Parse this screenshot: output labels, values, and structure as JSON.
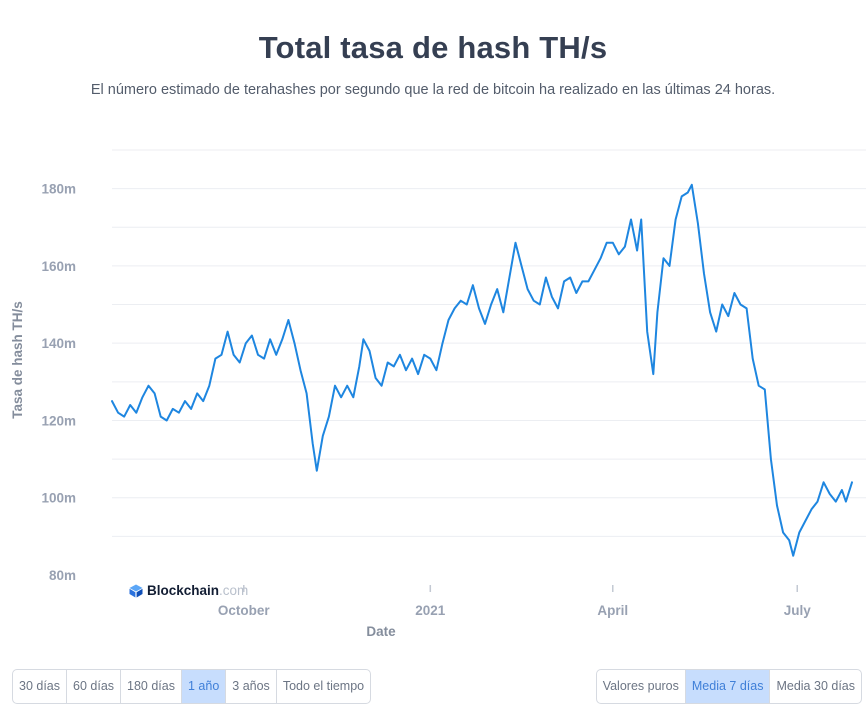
{
  "header": {
    "title": "Total tasa de hash TH/s",
    "subtitle": "El número estimado de terahashes por segundo que la red de bitcoin ha realizado en las últimas 24 horas."
  },
  "watermark": {
    "brand": "Blockchain",
    "suffix": ".com",
    "icon": "blockchain-logo-icon"
  },
  "range_buttons": [
    {
      "label": "30 días",
      "active": false
    },
    {
      "label": "60 días",
      "active": false
    },
    {
      "label": "180 días",
      "active": false
    },
    {
      "label": "1 año",
      "active": true
    },
    {
      "label": "3 años",
      "active": false
    },
    {
      "label": "Todo el tiempo",
      "active": false
    }
  ],
  "avg_buttons": [
    {
      "label": "Valores puros",
      "active": false
    },
    {
      "label": "Media 7 días",
      "active": true
    },
    {
      "label": "Media 30 días",
      "active": false
    }
  ],
  "colors": {
    "line": "#1e86e0",
    "grid": "#eceef2",
    "active_button_bg": "#c7ddfd"
  },
  "chart_data": {
    "type": "line",
    "title": "Total tasa de hash TH/s",
    "xlabel": "Date",
    "ylabel": "Tasa de hash TH/s",
    "x_range": [
      "2020-07-28",
      "2021-07-28"
    ],
    "ylim": [
      80,
      190
    ],
    "y_ticks": [
      80,
      100,
      120,
      140,
      160,
      180
    ],
    "y_tick_labels": [
      "80m",
      "100m",
      "120m",
      "140m",
      "160m",
      "180m"
    ],
    "x_ticks": [
      {
        "date": "2020-10-01",
        "label": "October"
      },
      {
        "date": "2021-01-01",
        "label": "2021"
      },
      {
        "date": "2021-04-01",
        "label": "April"
      },
      {
        "date": "2021-07-01",
        "label": "July"
      }
    ],
    "grid": true,
    "legend": "none",
    "series": [
      {
        "points": [
          [
            "2020-07-28",
            125
          ],
          [
            "2020-07-31",
            122
          ],
          [
            "2020-08-03",
            121
          ],
          [
            "2020-08-06",
            124
          ],
          [
            "2020-08-09",
            122
          ],
          [
            "2020-08-12",
            126
          ],
          [
            "2020-08-15",
            129
          ],
          [
            "2020-08-18",
            127
          ],
          [
            "2020-08-21",
            121
          ],
          [
            "2020-08-24",
            120
          ],
          [
            "2020-08-27",
            123
          ],
          [
            "2020-08-30",
            122
          ],
          [
            "2020-09-02",
            125
          ],
          [
            "2020-09-05",
            123
          ],
          [
            "2020-09-08",
            127
          ],
          [
            "2020-09-11",
            125
          ],
          [
            "2020-09-14",
            129
          ],
          [
            "2020-09-17",
            136
          ],
          [
            "2020-09-20",
            137
          ],
          [
            "2020-09-23",
            143
          ],
          [
            "2020-09-26",
            137
          ],
          [
            "2020-09-29",
            135
          ],
          [
            "2020-10-02",
            140
          ],
          [
            "2020-10-05",
            142
          ],
          [
            "2020-10-08",
            137
          ],
          [
            "2020-10-11",
            136
          ],
          [
            "2020-10-14",
            141
          ],
          [
            "2020-10-17",
            137
          ],
          [
            "2020-10-20",
            141
          ],
          [
            "2020-10-23",
            146
          ],
          [
            "2020-10-26",
            140
          ],
          [
            "2020-10-29",
            133
          ],
          [
            "2020-11-01",
            127
          ],
          [
            "2020-11-04",
            114
          ],
          [
            "2020-11-06",
            107
          ],
          [
            "2020-11-09",
            116
          ],
          [
            "2020-11-12",
            121
          ],
          [
            "2020-11-15",
            129
          ],
          [
            "2020-11-18",
            126
          ],
          [
            "2020-11-21",
            129
          ],
          [
            "2020-11-24",
            126
          ],
          [
            "2020-11-27",
            134
          ],
          [
            "2020-11-29",
            141
          ],
          [
            "2020-12-02",
            138
          ],
          [
            "2020-12-05",
            131
          ],
          [
            "2020-12-08",
            129
          ],
          [
            "2020-12-11",
            135
          ],
          [
            "2020-12-14",
            134
          ],
          [
            "2020-12-17",
            137
          ],
          [
            "2020-12-20",
            133
          ],
          [
            "2020-12-23",
            136
          ],
          [
            "2020-12-26",
            132
          ],
          [
            "2020-12-29",
            137
          ],
          [
            "2021-01-01",
            136
          ],
          [
            "2021-01-04",
            133
          ],
          [
            "2021-01-07",
            140
          ],
          [
            "2021-01-10",
            146
          ],
          [
            "2021-01-13",
            149
          ],
          [
            "2021-01-16",
            151
          ],
          [
            "2021-01-19",
            150
          ],
          [
            "2021-01-22",
            155
          ],
          [
            "2021-01-25",
            149
          ],
          [
            "2021-01-28",
            145
          ],
          [
            "2021-01-31",
            150
          ],
          [
            "2021-02-03",
            154
          ],
          [
            "2021-02-06",
            148
          ],
          [
            "2021-02-09",
            157
          ],
          [
            "2021-02-12",
            166
          ],
          [
            "2021-02-15",
            160
          ],
          [
            "2021-02-18",
            154
          ],
          [
            "2021-02-21",
            151
          ],
          [
            "2021-02-24",
            150
          ],
          [
            "2021-02-27",
            157
          ],
          [
            "2021-03-02",
            152
          ],
          [
            "2021-03-05",
            149
          ],
          [
            "2021-03-08",
            156
          ],
          [
            "2021-03-11",
            157
          ],
          [
            "2021-03-14",
            153
          ],
          [
            "2021-03-17",
            156
          ],
          [
            "2021-03-20",
            156
          ],
          [
            "2021-03-23",
            159
          ],
          [
            "2021-03-26",
            162
          ],
          [
            "2021-03-29",
            166
          ],
          [
            "2021-04-01",
            166
          ],
          [
            "2021-04-04",
            163
          ],
          [
            "2021-04-07",
            165
          ],
          [
            "2021-04-10",
            172
          ],
          [
            "2021-04-13",
            164
          ],
          [
            "2021-04-15",
            172
          ],
          [
            "2021-04-18",
            143
          ],
          [
            "2021-04-21",
            132
          ],
          [
            "2021-04-23",
            148
          ],
          [
            "2021-04-26",
            162
          ],
          [
            "2021-04-29",
            160
          ],
          [
            "2021-05-02",
            172
          ],
          [
            "2021-05-05",
            178
          ],
          [
            "2021-05-08",
            179
          ],
          [
            "2021-05-10",
            181
          ],
          [
            "2021-05-13",
            171
          ],
          [
            "2021-05-16",
            158
          ],
          [
            "2021-05-19",
            148
          ],
          [
            "2021-05-22",
            143
          ],
          [
            "2021-05-25",
            150
          ],
          [
            "2021-05-28",
            147
          ],
          [
            "2021-05-31",
            153
          ],
          [
            "2021-06-03",
            150
          ],
          [
            "2021-06-06",
            149
          ],
          [
            "2021-06-09",
            136
          ],
          [
            "2021-06-12",
            129
          ],
          [
            "2021-06-15",
            128
          ],
          [
            "2021-06-18",
            110
          ],
          [
            "2021-06-21",
            98
          ],
          [
            "2021-06-24",
            91
          ],
          [
            "2021-06-27",
            89
          ],
          [
            "2021-06-29",
            85
          ],
          [
            "2021-07-02",
            91
          ],
          [
            "2021-07-05",
            94
          ],
          [
            "2021-07-08",
            97
          ],
          [
            "2021-07-11",
            99
          ],
          [
            "2021-07-14",
            104
          ],
          [
            "2021-07-17",
            101
          ],
          [
            "2021-07-20",
            99
          ],
          [
            "2021-07-23",
            102
          ],
          [
            "2021-07-25",
            99
          ],
          [
            "2021-07-28",
            104
          ]
        ]
      }
    ]
  }
}
